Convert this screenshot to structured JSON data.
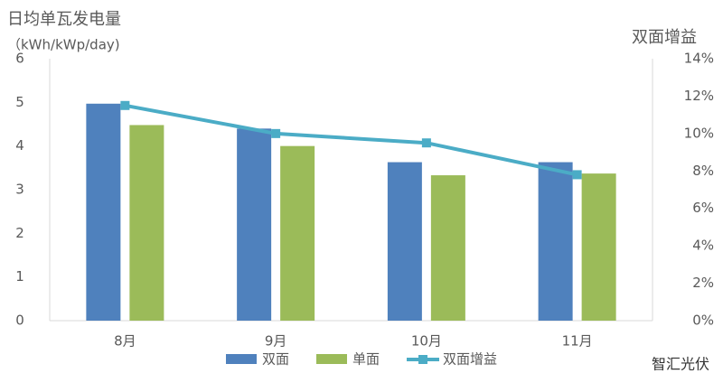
{
  "chart_data": {
    "type": "bar-line",
    "y_title": "日均单瓦发电量",
    "y_unit": "（kWh/kWp/day)",
    "y2_title": "双面增益",
    "categories": [
      "8月",
      "9月",
      "10月",
      "11月"
    ],
    "series": [
      {
        "name": "双面",
        "color": "#4f81bd",
        "type": "bar",
        "values": [
          4.97,
          4.4,
          3.63,
          3.63
        ]
      },
      {
        "name": "单面",
        "color": "#9bbb59",
        "type": "bar",
        "values": [
          4.48,
          4.0,
          3.33,
          3.37
        ]
      },
      {
        "name": "双面增益",
        "color": "#4bacc6",
        "type": "line",
        "axis": "y2",
        "values": [
          11.5,
          10.0,
          9.5,
          7.8
        ]
      }
    ],
    "ylim": [
      0,
      6
    ],
    "yticks": [
      0,
      1,
      2,
      3,
      4,
      5,
      6
    ],
    "y2lim": [
      0,
      14
    ],
    "y2ticks": [
      {
        "value": 0,
        "label": "0%"
      },
      {
        "value": 2,
        "label": "2%"
      },
      {
        "value": 4,
        "label": "4%"
      },
      {
        "value": 6,
        "label": "6%"
      },
      {
        "value": 8,
        "label": "8%"
      },
      {
        "value": 10,
        "label": "10%"
      },
      {
        "value": 12,
        "label": "12%"
      },
      {
        "value": 14,
        "label": "14%"
      }
    ],
    "grid": false,
    "watermark": "智汇光伏"
  }
}
